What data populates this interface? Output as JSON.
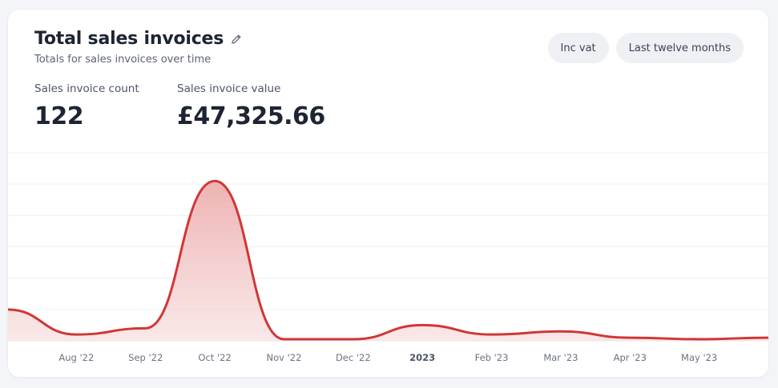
{
  "card": {
    "title": "Total sales invoices",
    "subtitle": "Totals for sales invoices over time",
    "edit_icon": "pencil-icon",
    "filters": {
      "vat_label": "Inc vat",
      "period_label": "Last twelve months"
    },
    "stats": {
      "count_label": "Sales invoice count",
      "count_value": "122",
      "value_label": "Sales invoice value",
      "value_value": "£47,325.66"
    }
  },
  "chart_data": {
    "type": "area",
    "line_color": "#d13636",
    "fill_color": "#f3c4c4",
    "grid": true,
    "y_axis_labels_shown": false,
    "x": [
      0,
      1,
      2,
      3,
      4,
      5,
      6,
      7,
      8,
      9,
      10,
      11
    ],
    "values": [
      10,
      2,
      4,
      51,
      0.5,
      0.5,
      5,
      2,
      3,
      1,
      0.5,
      1
    ],
    "ylim": [
      0,
      60
    ],
    "tick_labels": [
      "Aug '22",
      "Sep '22",
      "Oct '22",
      "Nov '22",
      "Dec '22",
      "2023",
      "Feb '23",
      "Mar '23",
      "Apr '23",
      "May '23"
    ]
  }
}
